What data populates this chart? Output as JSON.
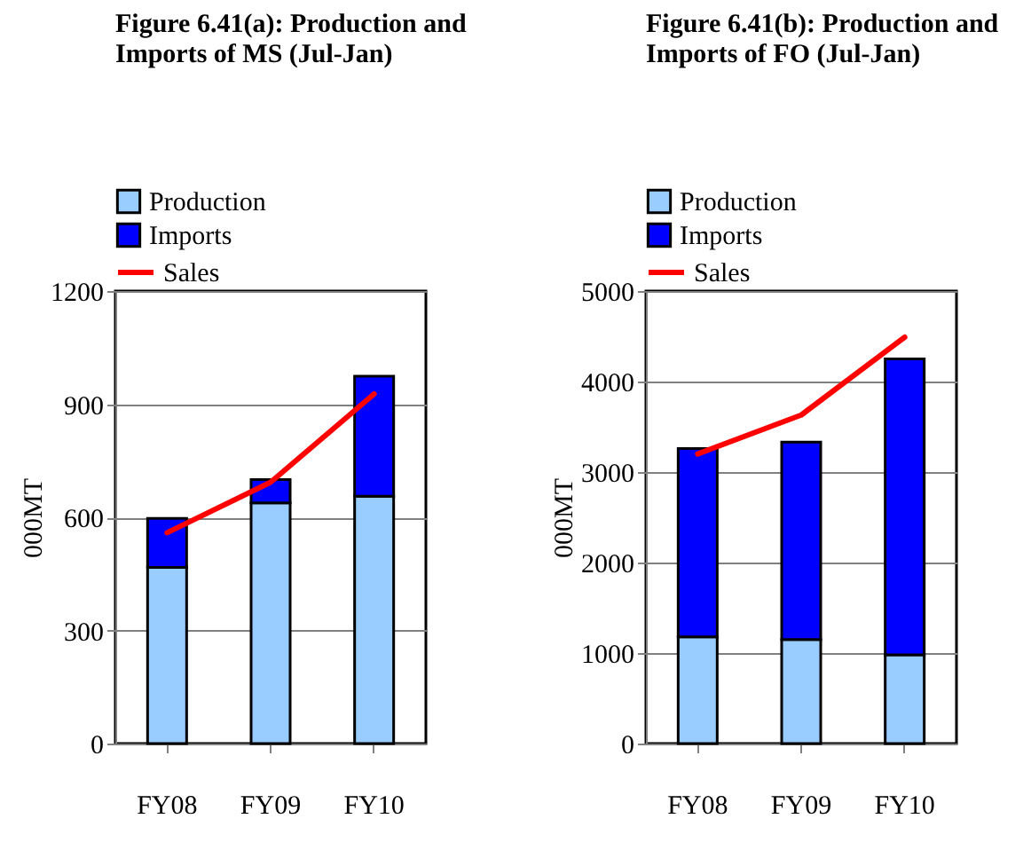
{
  "chart_data": [
    {
      "type": "bar",
      "stacked": true,
      "title": "Figure 6.41(a): Production and Imports of MS (Jul-Jan)",
      "ylabel": "000MT",
      "categories": [
        "FY08",
        "FY09",
        "FY10"
      ],
      "series": [
        {
          "name": "Production",
          "color": "#99ccff",
          "values": [
            467,
            638,
            656
          ]
        },
        {
          "name": "Imports",
          "color": "#0000ff",
          "values": [
            130,
            62,
            318
          ]
        },
        {
          "name": "Sales",
          "type": "line",
          "color": "#ff0000",
          "values": [
            559,
            693,
            927
          ]
        }
      ],
      "ylim": [
        0,
        1200
      ],
      "yticks": [
        0,
        300,
        600,
        900,
        1200
      ],
      "grid": "y",
      "legend": "top left",
      "marker": "none",
      "line_style": "solid"
    },
    {
      "type": "bar",
      "stacked": true,
      "title": "Figure 6.41(b): Production and Imports of FO (Jul-Jan)",
      "ylabel": "000MT",
      "categories": [
        "FY08",
        "FY09",
        "FY10"
      ],
      "series": [
        {
          "name": "Production",
          "color": "#99ccff",
          "values": [
            1180,
            1150,
            980
          ]
        },
        {
          "name": "Imports",
          "color": "#0000ff",
          "values": [
            2080,
            2180,
            3270
          ]
        },
        {
          "name": "Sales",
          "type": "line",
          "color": "#ff0000",
          "values": [
            3200,
            3630,
            4490
          ]
        }
      ],
      "ylim": [
        0,
        5000
      ],
      "yticks": [
        0,
        1000,
        2000,
        3000,
        4000,
        5000
      ],
      "grid": "y",
      "legend": "top left",
      "marker": "none",
      "line_style": "solid"
    }
  ]
}
